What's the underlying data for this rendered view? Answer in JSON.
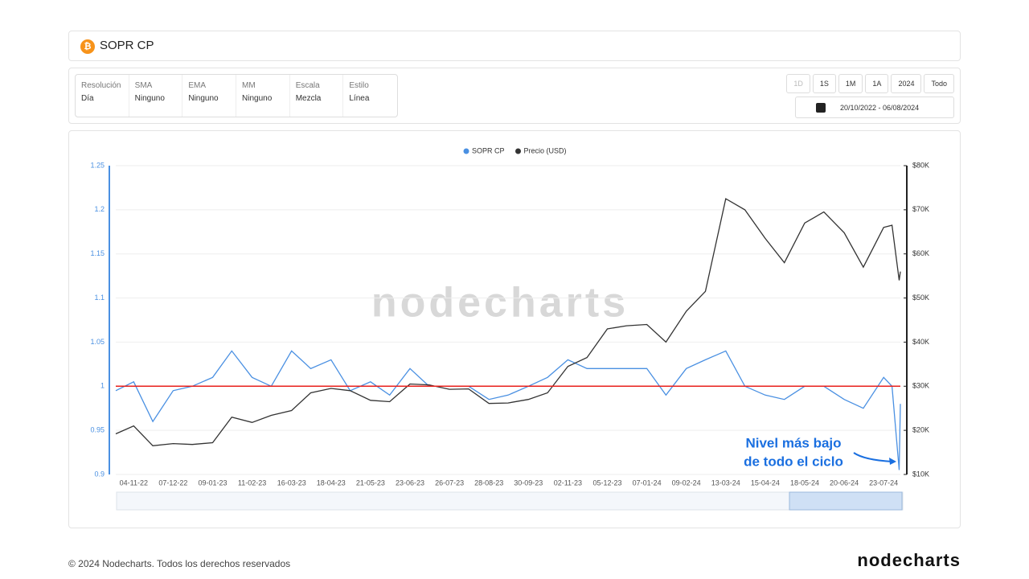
{
  "header": {
    "title": "SOPR CP"
  },
  "controls": [
    {
      "label": "Resolución",
      "value": "Día"
    },
    {
      "label": "SMA",
      "value": "Ninguno"
    },
    {
      "label": "EMA",
      "value": "Ninguno"
    },
    {
      "label": "MM",
      "value": "Ninguno"
    },
    {
      "label": "Escala",
      "value": "Mezcla"
    },
    {
      "label": "Estilo",
      "value": "Línea"
    }
  ],
  "range_buttons": [
    "1D",
    "1S",
    "1M",
    "1A",
    "2024",
    "Todo"
  ],
  "date_range": "20/10/2022 - 06/08/2024",
  "chart_data": {
    "type": "line",
    "watermark": "nodecharts",
    "x": [
      "20-10-22",
      "04-11-22",
      "20-11-22",
      "07-12-22",
      "23-12-22",
      "09-01-23",
      "25-01-23",
      "11-02-23",
      "27-02-23",
      "16-03-23",
      "01-04-23",
      "18-04-23",
      "04-05-23",
      "21-05-23",
      "06-06-23",
      "23-06-23",
      "09-07-23",
      "26-07-23",
      "11-08-23",
      "28-08-23",
      "13-09-23",
      "30-09-23",
      "16-10-23",
      "02-11-23",
      "18-11-23",
      "05-12-23",
      "21-12-23",
      "07-01-24",
      "23-01-24",
      "09-02-24",
      "25-02-24",
      "13-03-24",
      "29-03-24",
      "15-04-24",
      "01-05-24",
      "18-05-24",
      "03-06-24",
      "20-06-24",
      "06-07-24",
      "23-07-24",
      "30-07-24",
      "05-08-24",
      "06-08-24"
    ],
    "series": [
      {
        "name": "SOPR CP",
        "color": "#4a90e2",
        "axis": "y",
        "values": [
          0.995,
          1.005,
          0.96,
          0.995,
          1.0,
          1.01,
          1.04,
          1.01,
          1.0,
          1.04,
          1.02,
          1.03,
          0.995,
          1.005,
          0.99,
          1.02,
          1.0,
          1.0,
          1.0,
          0.985,
          0.99,
          1.0,
          1.01,
          1.03,
          1.02,
          1.02,
          1.02,
          1.02,
          0.99,
          1.02,
          1.03,
          1.04,
          1.0,
          0.99,
          0.985,
          1.0,
          1.0,
          0.985,
          0.975,
          1.01,
          1.0,
          0.905,
          0.98
        ]
      },
      {
        "name": "Precio (USD)",
        "color": "#333333",
        "axis": "y2",
        "values": [
          19200,
          21000,
          16500,
          17000,
          16800,
          17200,
          23000,
          21800,
          23400,
          24500,
          28500,
          29500,
          29000,
          26800,
          26500,
          30500,
          30300,
          29300,
          29400,
          26100,
          26200,
          27000,
          28500,
          34500,
          36500,
          43000,
          43700,
          44000,
          40000,
          47000,
          51500,
          72500,
          70000,
          63500,
          58000,
          67000,
          69500,
          64800,
          57000,
          66000,
          66500,
          54000,
          56000
        ]
      }
    ],
    "xlim": [
      "20-10-22",
      "06-08-24"
    ],
    "xticks": [
      "04-11-22",
      "07-12-22",
      "09-01-23",
      "11-02-23",
      "16-03-23",
      "18-04-23",
      "21-05-23",
      "23-06-23",
      "26-07-23",
      "28-08-23",
      "30-09-23",
      "02-11-23",
      "05-12-23",
      "07-01-24",
      "09-02-24",
      "13-03-24",
      "15-04-24",
      "18-05-24",
      "20-06-24",
      "23-07-24"
    ],
    "ylim": [
      0.9,
      1.25
    ],
    "yticks": [
      0.9,
      0.95,
      1,
      1.05,
      1.1,
      1.15,
      1.2,
      1.25
    ],
    "y2lim": [
      10000,
      80000
    ],
    "y2ticks": [
      {
        "value": 10000,
        "label": "$10K"
      },
      {
        "value": 20000,
        "label": "$20K"
      },
      {
        "value": 30000,
        "label": "$30K"
      },
      {
        "value": 40000,
        "label": "$40K"
      },
      {
        "value": 50000,
        "label": "$50K"
      },
      {
        "value": 60000,
        "label": "$60K"
      },
      {
        "value": 70000,
        "label": "$70K"
      },
      {
        "value": 80000,
        "label": "$80K"
      }
    ],
    "reference_line": {
      "value": 1,
      "color": "#e8201c"
    },
    "grid": true,
    "legend": "top",
    "annotation": [
      "Nivel más bajo",
      "de todo el ciclo"
    ],
    "annotation_color": "#1a6fe0"
  },
  "footer": {
    "copyright": "© 2024 Nodecharts. Todos los derechos reservados",
    "logo": "nodecharts"
  }
}
